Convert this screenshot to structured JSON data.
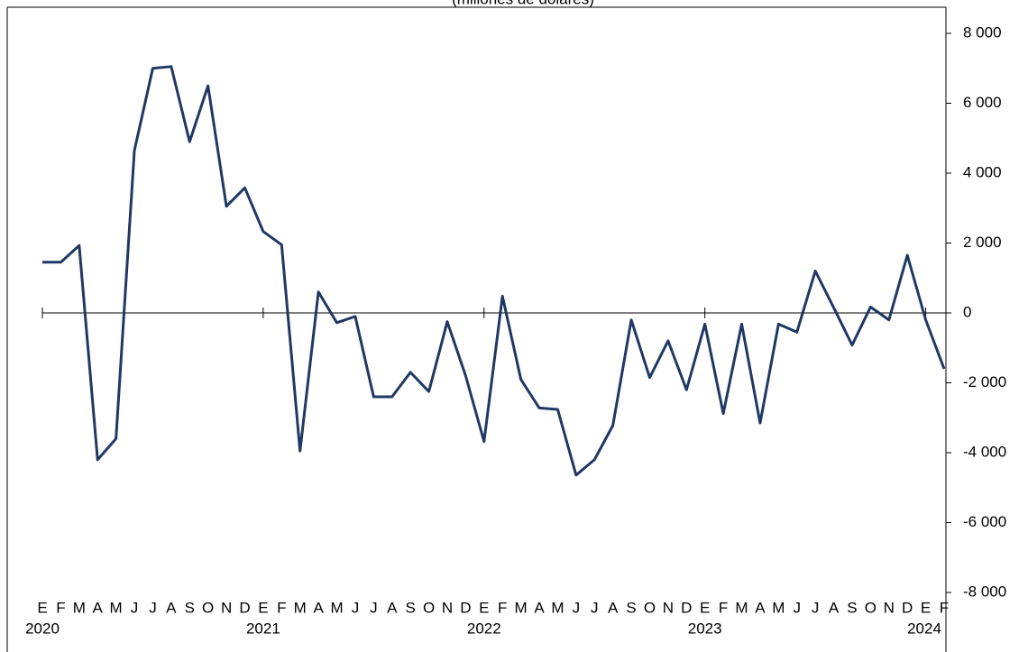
{
  "chart_data": {
    "type": "line",
    "subtitle": "(millones de dólares)",
    "categories": [
      "E",
      "F",
      "M",
      "A",
      "M",
      "J",
      "J",
      "A",
      "S",
      "O",
      "N",
      "D",
      "E",
      "F",
      "M",
      "A",
      "M",
      "J",
      "J",
      "A",
      "S",
      "O",
      "N",
      "D",
      "E",
      "F",
      "M",
      "A",
      "M",
      "J",
      "J",
      "A",
      "S",
      "O",
      "N",
      "D",
      "E",
      "F",
      "M",
      "A",
      "M",
      "J",
      "J",
      "A",
      "S",
      "O",
      "N",
      "D",
      "E",
      "F"
    ],
    "category_groups": [
      "2020",
      "2021",
      "2022",
      "2023",
      "2024"
    ],
    "values": [
      1450,
      1450,
      1930,
      -4200,
      -3600,
      4650,
      7000,
      7050,
      4900,
      6500,
      3050,
      3580,
      2330,
      1950,
      -3950,
      600,
      -280,
      -100,
      -2400,
      -2400,
      -1700,
      -2250,
      -250,
      -1800,
      -3680,
      480,
      -1900,
      -2720,
      -2760,
      -4640,
      -4200,
      -3220,
      -200,
      -1850,
      -800,
      -2200,
      -320,
      -2880,
      -320,
      -3150,
      -320,
      -550,
      1200,
      150,
      -920,
      170,
      -200,
      1650,
      -200,
      -1600
    ],
    "color": "#1f3864",
    "ylim": [
      -8000,
      8000
    ],
    "yticks": [
      {
        "value": -8000,
        "label": "-8 000"
      },
      {
        "value": -6000,
        "label": "-6 000"
      },
      {
        "value": -4000,
        "label": "-4 000"
      },
      {
        "value": -2000,
        "label": "-2 000"
      },
      0,
      {
        "value": 2000,
        "label": "2 000"
      },
      {
        "value": 4000,
        "label": "4 000"
      },
      {
        "value": 6000,
        "label": "6 000"
      },
      {
        "value": 8000,
        "label": "8 000"
      }
    ],
    "y_axis_side": "right"
  }
}
